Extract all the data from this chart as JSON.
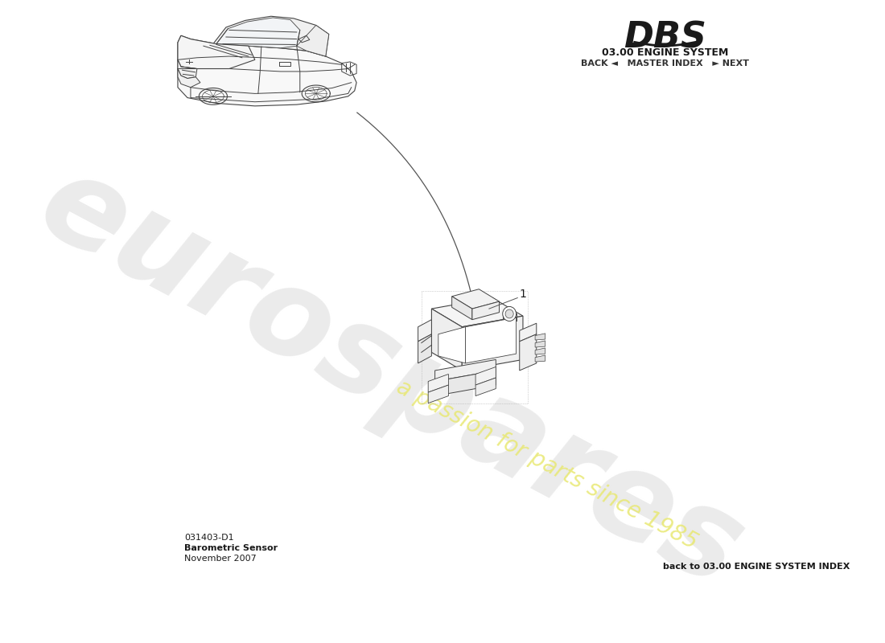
{
  "title_model": "DBS",
  "title_system": "03.00 ENGINE SYSTEM",
  "nav_text": "BACK ◄   MASTER INDEX   ► NEXT",
  "part_number": "031403-D1",
  "part_name": "Barometric Sensor",
  "date": "November 2007",
  "back_link": "back to 03.00 ENGINE SYSTEM INDEX",
  "part_label": "1",
  "bg_color": "#ffffff",
  "text_color": "#1a1a1a",
  "line_color": "#444444",
  "watermark_color": "#d8d8d8",
  "watermark_yellow": "#e8e870",
  "nav_color": "#333333"
}
